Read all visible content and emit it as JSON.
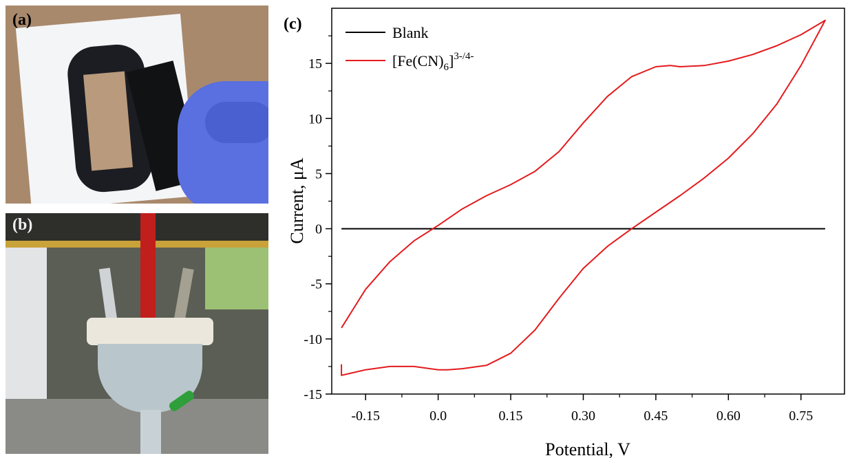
{
  "panels": {
    "a": {
      "label": "(a)"
    },
    "b": {
      "label": "(b)"
    },
    "c": {
      "label": "(c)"
    }
  },
  "chart_data": {
    "type": "line",
    "xlabel": "Potential, V",
    "ylabel": "Current, μA",
    "xlim": [
      -0.22,
      0.84
    ],
    "ylim": [
      -15,
      20
    ],
    "x_ticks": [
      -0.15,
      0.0,
      0.15,
      0.3,
      0.45,
      0.6,
      0.75
    ],
    "x_tick_labels": [
      "-0.15",
      "0.0",
      "0.15",
      "0.30",
      "0.45",
      "0.60",
      "0.75"
    ],
    "y_ticks": [
      -15,
      -10,
      -5,
      0,
      5,
      10,
      15
    ],
    "y_tick_labels": [
      "-15",
      "-10",
      "-5",
      "0",
      "5",
      "10",
      "15"
    ],
    "grid": false,
    "legend_position": "top-left",
    "series": [
      {
        "name": "Blank",
        "color": "#000000",
        "x": [
          -0.2,
          0.8
        ],
        "y": [
          0,
          0
        ]
      },
      {
        "name": "[Fe(CN)6]3-/4-",
        "legend": {
          "base": "[Fe(CN)",
          "sub": "6",
          "base2": "]",
          "sup": "3-/4-"
        },
        "color": "#e41a1c",
        "x": [
          -0.2,
          -0.15,
          -0.1,
          -0.05,
          0.0,
          0.05,
          0.1,
          0.15,
          0.2,
          0.25,
          0.3,
          0.35,
          0.4,
          0.45,
          0.48,
          0.5,
          0.55,
          0.6,
          0.65,
          0.7,
          0.75,
          0.8,
          0.75,
          0.7,
          0.65,
          0.6,
          0.55,
          0.5,
          0.45,
          0.4,
          0.35,
          0.3,
          0.25,
          0.2,
          0.15,
          0.1,
          0.05,
          0.02,
          0.0,
          -0.05,
          -0.1,
          -0.15,
          -0.2,
          -0.2
        ],
        "y": [
          -9.0,
          -5.5,
          -3.0,
          -1.1,
          0.3,
          1.8,
          3.0,
          4.0,
          5.2,
          7.0,
          9.6,
          12.0,
          13.8,
          14.7,
          14.8,
          14.7,
          14.8,
          15.2,
          15.8,
          16.6,
          17.6,
          18.9,
          14.8,
          11.3,
          8.6,
          6.4,
          4.6,
          3.0,
          1.5,
          0.0,
          -1.6,
          -3.6,
          -6.3,
          -9.2,
          -11.3,
          -12.4,
          -12.7,
          -12.8,
          -12.8,
          -12.5,
          -12.5,
          -12.8,
          -13.3,
          -12.3
        ]
      }
    ]
  }
}
